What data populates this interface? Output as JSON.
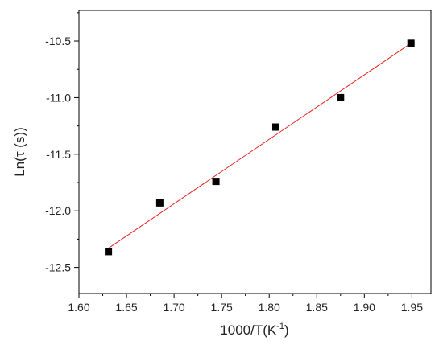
{
  "chart_data": {
    "type": "scatter",
    "xlabel": "1000/T(K",
    "xlabel_sup": "-1",
    "xlabel_suffix": ")",
    "ylabel": "Ln(τ (s))",
    "xlim": [
      1.6,
      1.97
    ],
    "ylim": [
      -12.73,
      -10.23
    ],
    "x_ticks": [
      1.6,
      1.65,
      1.7,
      1.75,
      1.8,
      1.85,
      1.9,
      1.95
    ],
    "x_tick_labels": [
      "1.60",
      "1.65",
      "1.70",
      "1.75",
      "1.80",
      "1.85",
      "1.90",
      "1.95"
    ],
    "y_ticks": [
      -10.5,
      -11.0,
      -11.5,
      -12.0,
      -12.5
    ],
    "y_tick_labels": [
      "-10.5",
      "-11.0",
      "-11.5",
      "-12.0",
      "-12.5"
    ],
    "grid": false,
    "series": [
      {
        "marker": "square",
        "color": "#000000",
        "x": [
          1.631,
          1.685,
          1.744,
          1.807,
          1.875,
          1.949
        ],
        "y": [
          -12.36,
          -11.93,
          -11.74,
          -11.26,
          -11.0,
          -10.52
        ]
      }
    ],
    "fit_line": {
      "color": "#e8221c",
      "x": [
        1.631,
        1.949
      ],
      "y": [
        -12.33,
        -10.52
      ]
    }
  }
}
